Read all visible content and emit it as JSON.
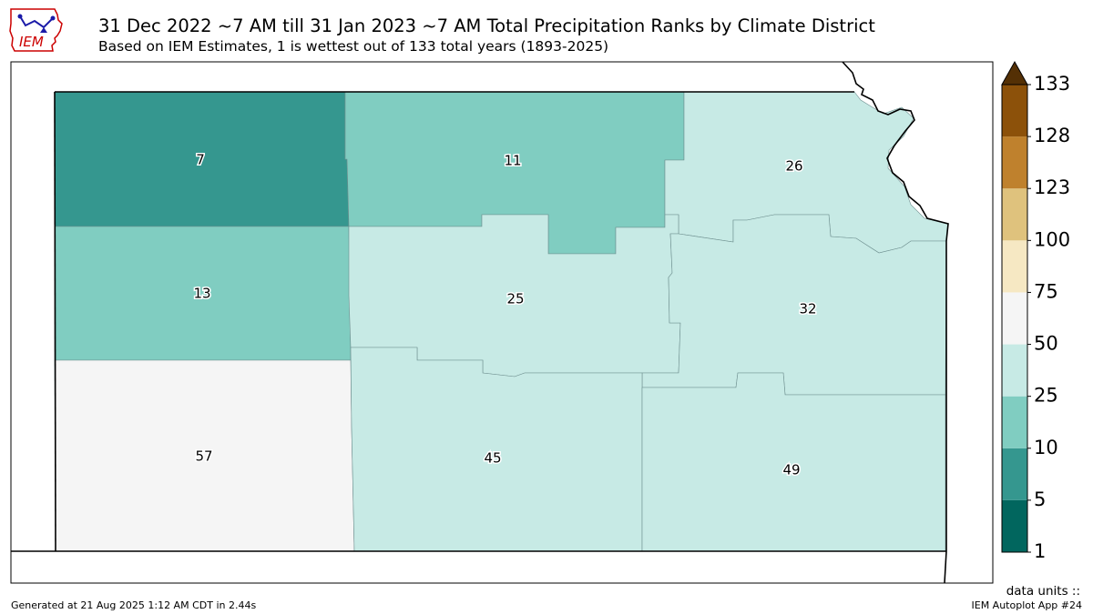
{
  "header": {
    "logo_text": "IEM",
    "title": "31 Dec 2022 ~7 AM till 31 Jan 2023 ~7 AM Total Precipitation Ranks by Climate District",
    "subtitle": "Based on IEM Estimates, 1 is wettest out of 133 total years (1893-2025)"
  },
  "map": {
    "districts": [
      {
        "id": "nw",
        "rank": "7",
        "color": "#35978f"
      },
      {
        "id": "nc",
        "rank": "11",
        "color": "#80cdc1"
      },
      {
        "id": "ne",
        "rank": "26",
        "color": "#c7eae5"
      },
      {
        "id": "wc",
        "rank": "13",
        "color": "#80cdc1"
      },
      {
        "id": "c",
        "rank": "25",
        "color": "#c7eae5"
      },
      {
        "id": "ec",
        "rank": "32",
        "color": "#c7eae5"
      },
      {
        "id": "sw",
        "rank": "57",
        "color": "#f5f5f5"
      },
      {
        "id": "sc",
        "rank": "45",
        "color": "#c7eae5"
      },
      {
        "id": "se",
        "rank": "49",
        "color": "#c7eae5"
      }
    ]
  },
  "colorbar": {
    "labels": [
      "1",
      "5",
      "10",
      "25",
      "50",
      "75",
      "100",
      "123",
      "128",
      "133"
    ],
    "colors": [
      "#01665e",
      "#35978f",
      "#80cdc1",
      "#c7eae5",
      "#f5f5f5",
      "#f6e8c3",
      "#dfc27d",
      "#bf812d",
      "#8c510a"
    ],
    "extend_color": "#543005"
  },
  "footer": {
    "generated": "Generated at 21 Aug 2025 1:12 AM CDT in 2.44s",
    "units": "data units ::",
    "app": "IEM Autoplot App #24"
  }
}
